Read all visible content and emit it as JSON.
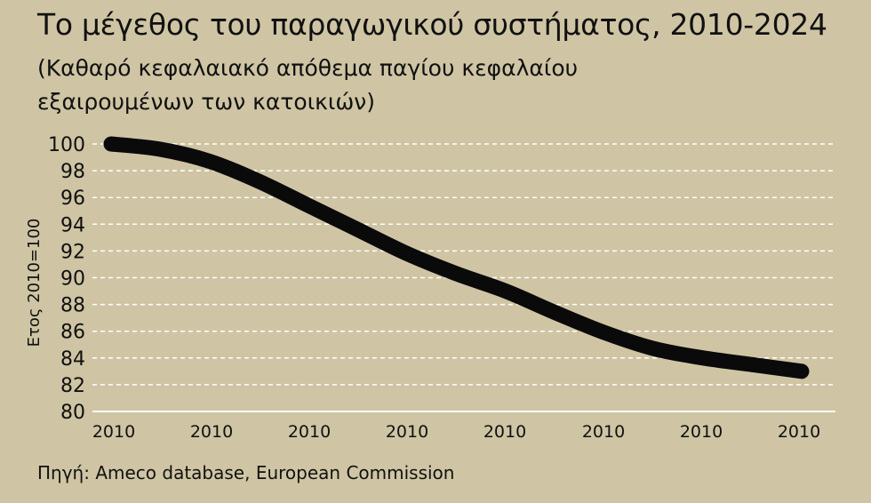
{
  "title": "Το μέγεθος του παραγωγικού συστήματος, 2010-2024",
  "subtitle": "(Καθαρό κεφαλαιακό απόθεμα παγίου κεφαλαίου εξαιρουμένων των κατοικιών)",
  "source": "Πηγή: Ameco database, European Commission",
  "colors": {
    "background": "#cfc5a4",
    "line": "#0a0a0a",
    "grid": "#ffffff",
    "text": "#111111"
  },
  "chart_data": {
    "type": "line",
    "title": "Το μέγεθος του παραγωγικού συστήματος, 2010-2024",
    "subtitle": "(Καθαρό κεφαλαιακό απόθεμα παγίου κεφαλαίου εξαιρουμένων των κατοικιών)",
    "xlabel": "",
    "ylabel": "Ετος 2010=100",
    "ylim": [
      80,
      100
    ],
    "yticks": [
      100,
      98,
      96,
      94,
      92,
      90,
      88,
      86,
      84,
      82,
      80
    ],
    "xtick_labels": [
      "2010",
      "2010",
      "2010",
      "2010",
      "2010",
      "2010",
      "2010",
      "2010"
    ],
    "grid": "horizontal dashed",
    "legend": "none",
    "series": [
      {
        "values": [
          100,
          99.6,
          98.7,
          97.2,
          95.4,
          93.6,
          91.8,
          90.3,
          89.0,
          87.4,
          85.9,
          84.7,
          84.0,
          83.5,
          83.0
        ]
      }
    ]
  }
}
